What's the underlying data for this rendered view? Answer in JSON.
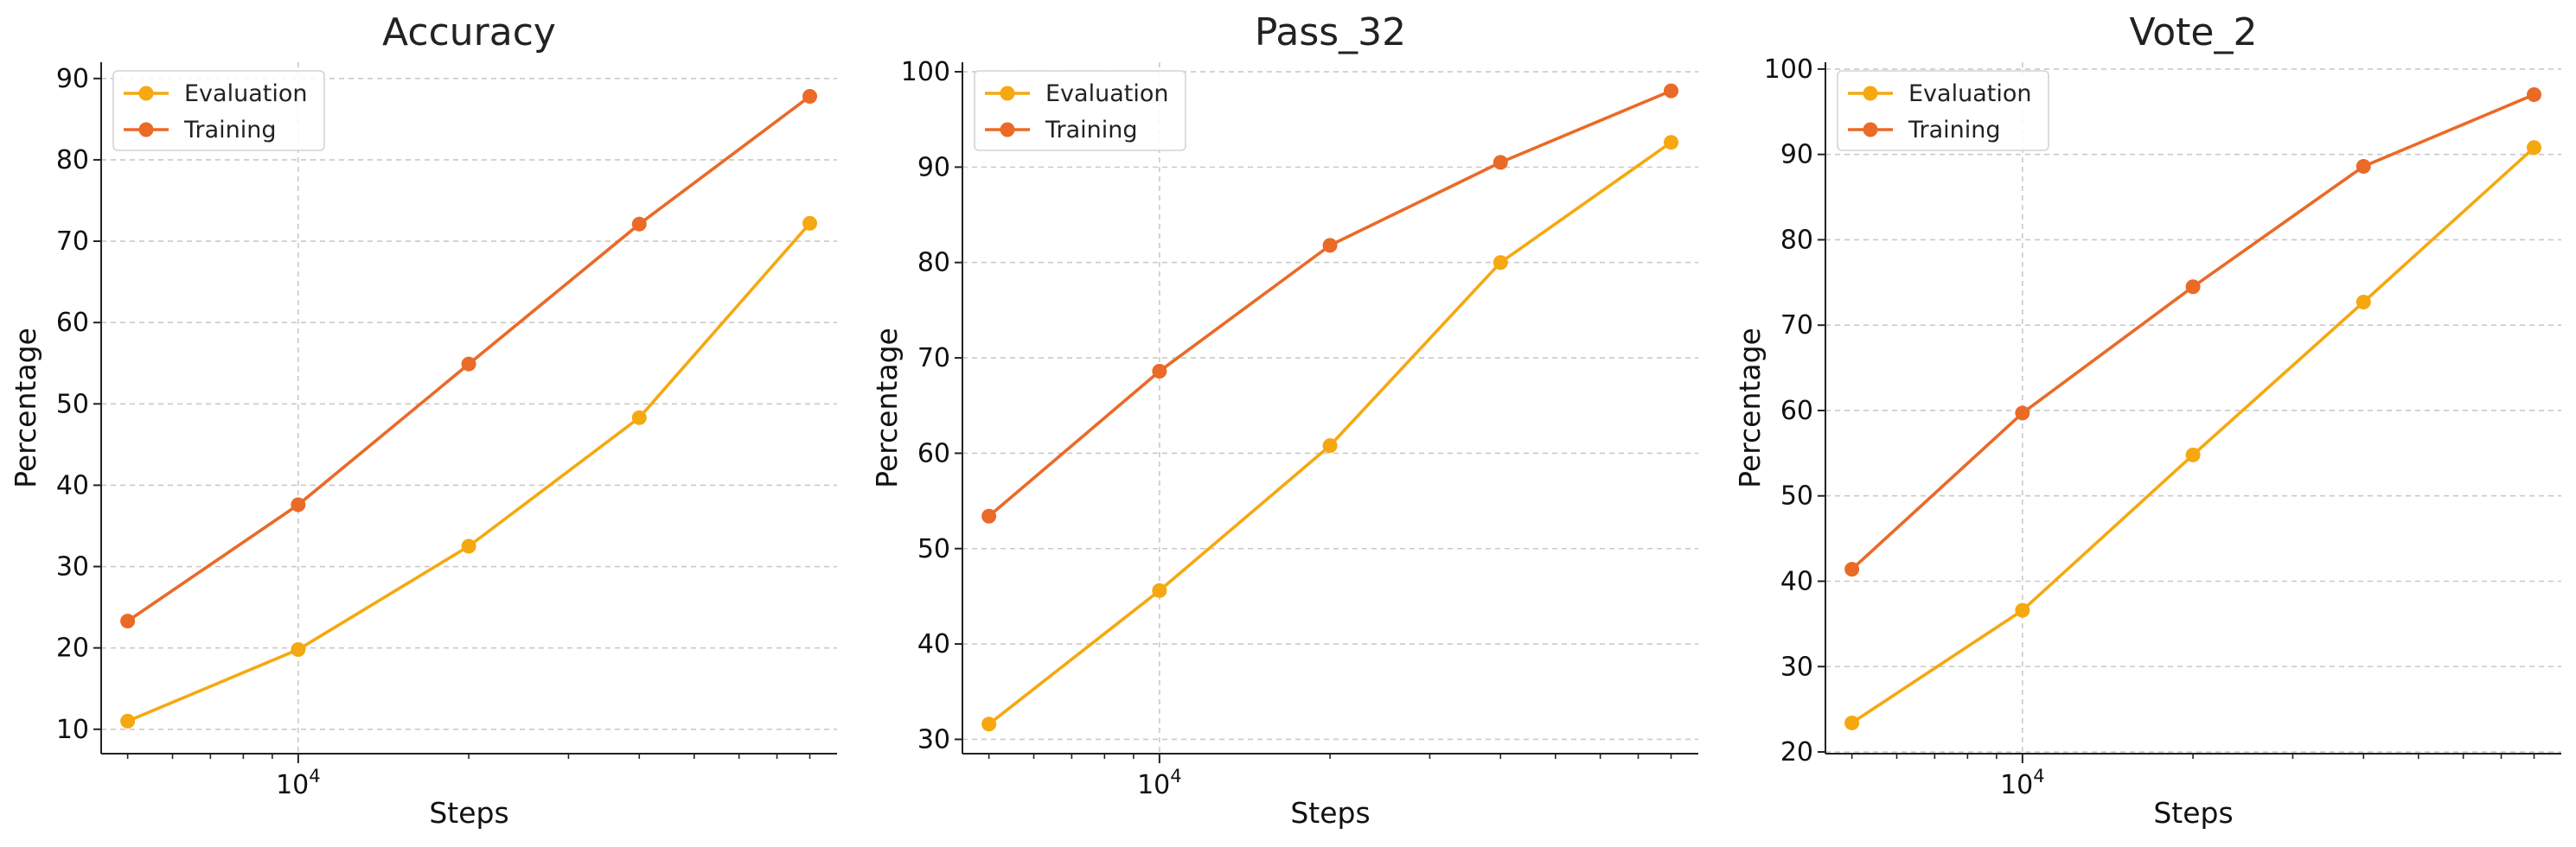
{
  "colors": {
    "evaluation": "#F5A80F",
    "training": "#EA6A27"
  },
  "chart_data": [
    {
      "type": "line",
      "title": "Accuracy",
      "xlabel": "Steps",
      "ylabel": "Percentage",
      "xscale": "log",
      "x": [
        5000,
        10000,
        20000,
        40000,
        80000
      ],
      "xticks": [
        {
          "value": 10000,
          "base": "10",
          "exp": "4"
        }
      ],
      "ylim": [
        7,
        92
      ],
      "yticks": [
        10,
        20,
        30,
        40,
        50,
        60,
        70,
        80,
        90
      ],
      "grid": true,
      "legend": "top-left",
      "series": [
        {
          "name": "Evaluation",
          "values": [
            11.0,
            19.8,
            32.5,
            48.3,
            72.2
          ]
        },
        {
          "name": "Training",
          "values": [
            23.3,
            37.6,
            54.9,
            72.1,
            87.8
          ]
        }
      ]
    },
    {
      "type": "line",
      "title": "Pass_32",
      "xlabel": "Steps",
      "ylabel": "Percentage",
      "xscale": "log",
      "x": [
        5000,
        10000,
        20000,
        40000,
        80000
      ],
      "xticks": [
        {
          "value": 10000,
          "base": "10",
          "exp": "4"
        }
      ],
      "ylim": [
        28.5,
        101
      ],
      "yticks": [
        30,
        40,
        50,
        60,
        70,
        80,
        90,
        100
      ],
      "grid": true,
      "legend": "top-left",
      "series": [
        {
          "name": "Evaluation",
          "values": [
            31.6,
            45.6,
            60.8,
            80.0,
            92.6
          ]
        },
        {
          "name": "Training",
          "values": [
            53.4,
            68.6,
            81.8,
            90.5,
            98.0
          ]
        }
      ]
    },
    {
      "type": "line",
      "title": "Vote_2",
      "xlabel": "Steps",
      "ylabel": "Percentage",
      "xscale": "log",
      "x": [
        5000,
        10000,
        20000,
        40000,
        80000
      ],
      "xticks": [
        {
          "value": 10000,
          "base": "10",
          "exp": "4"
        }
      ],
      "ylim": [
        19.8,
        100.8
      ],
      "yticks": [
        20,
        30,
        40,
        50,
        60,
        70,
        80,
        90,
        100
      ],
      "grid": true,
      "legend": "top-left",
      "series": [
        {
          "name": "Evaluation",
          "values": [
            23.4,
            36.6,
            54.8,
            72.7,
            90.8
          ]
        },
        {
          "name": "Training",
          "values": [
            41.4,
            59.7,
            74.5,
            88.6,
            97.0
          ]
        }
      ]
    }
  ]
}
